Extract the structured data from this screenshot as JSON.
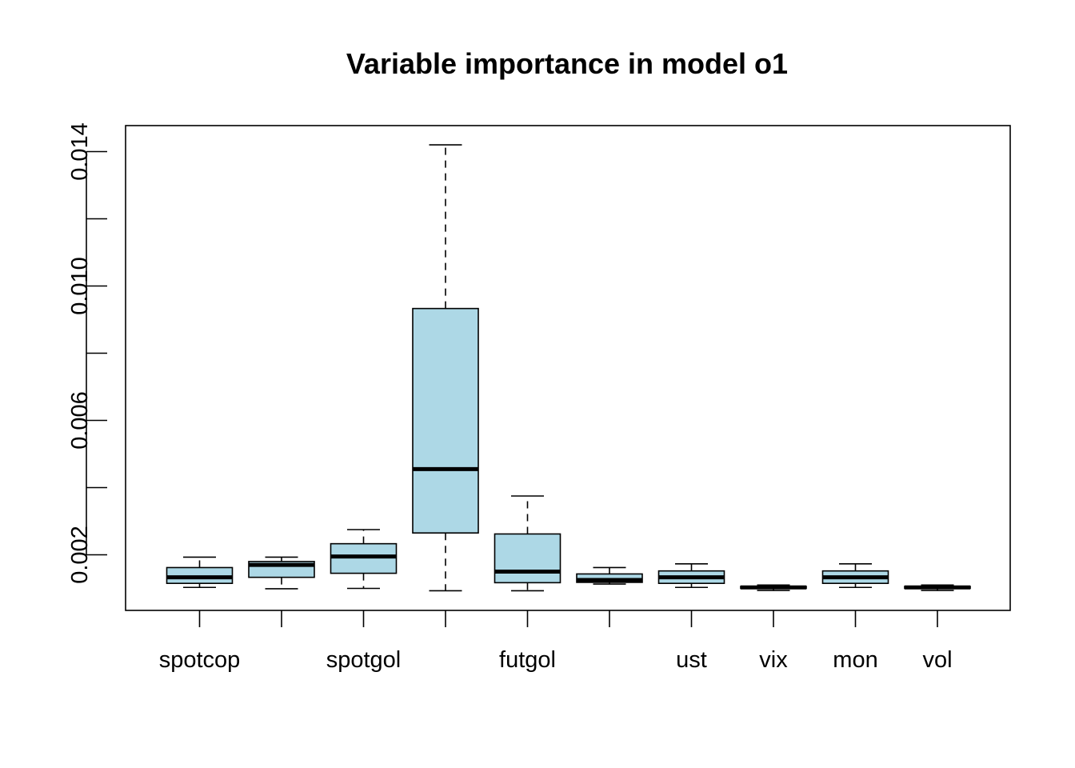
{
  "chart_data": {
    "type": "boxplot",
    "title": "Variable importance in model o1",
    "xlabel": "",
    "ylabel": "",
    "ylim": [
      0.0008,
      0.0146
    ],
    "yticks": [
      0.002,
      0.004,
      0.006,
      0.008,
      0.01,
      0.012,
      0.014
    ],
    "ytick_labels": [
      "0.002",
      "",
      "0.006",
      "",
      "0.010",
      "",
      "0.014"
    ],
    "categories": [
      "spotcop",
      "",
      "spotgol",
      "",
      "futgol",
      "",
      "ust",
      "vix",
      "mon",
      "vol"
    ],
    "box_fill": "#add8e6",
    "boxes": [
      {
        "min": 0.00103,
        "q1": 0.00115,
        "median": 0.00133,
        "q3": 0.00162,
        "max": 0.00193
      },
      {
        "min": 0.00099,
        "q1": 0.00133,
        "median": 0.0017,
        "q3": 0.0018,
        "max": 0.00193
      },
      {
        "min": 0.001,
        "q1": 0.00145,
        "median": 0.00195,
        "q3": 0.00233,
        "max": 0.00275
      },
      {
        "min": 0.00093,
        "q1": 0.00265,
        "median": 0.00455,
        "q3": 0.00933,
        "max": 0.0142
      },
      {
        "min": 0.00093,
        "q1": 0.00117,
        "median": 0.0015,
        "q3": 0.00262,
        "max": 0.00375
      },
      {
        "min": 0.00113,
        "q1": 0.00118,
        "median": 0.00125,
        "q3": 0.00143,
        "max": 0.00162
      },
      {
        "min": 0.00103,
        "q1": 0.00115,
        "median": 0.00133,
        "q3": 0.00152,
        "max": 0.00173
      },
      {
        "min": 0.00094,
        "q1": 0.001,
        "median": 0.00103,
        "q3": 0.00106,
        "max": 0.0011
      },
      {
        "min": 0.00103,
        "q1": 0.00115,
        "median": 0.00133,
        "q3": 0.00152,
        "max": 0.00173
      },
      {
        "min": 0.00094,
        "q1": 0.001,
        "median": 0.00103,
        "q3": 0.00106,
        "max": 0.0011
      }
    ]
  }
}
